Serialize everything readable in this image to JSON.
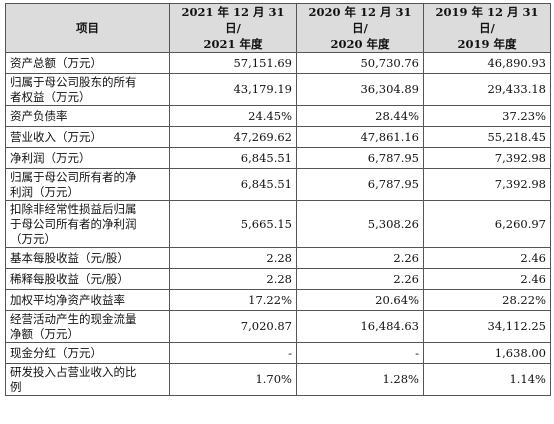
{
  "header": {
    "item": "项目",
    "col2021": [
      "2021 年 12 月 31 日/",
      "2021 年度"
    ],
    "col2020": [
      "2020 年 12 月 31 日/",
      "2020 年度"
    ],
    "col2019": [
      "2019 年 12 月 31 日/",
      "2019 年度"
    ]
  },
  "rows": [
    {
      "label": [
        "资产总额（万元）"
      ],
      "v2021": "57,151.69",
      "v2020": "50,730.76",
      "v2019": "46,890.93"
    },
    {
      "label": [
        "归属于母公司股东的所有",
        "者权益（万元）"
      ],
      "v2021": "43,179.19",
      "v2020": "36,304.89",
      "v2019": "29,433.18"
    },
    {
      "label": [
        "资产负债率"
      ],
      "v2021": "24.45%",
      "v2020": "28.44%",
      "v2019": "37.23%"
    },
    {
      "label": [
        "营业收入（万元）"
      ],
      "v2021": "47,269.62",
      "v2020": "47,861.16",
      "v2019": "55,218.45"
    },
    {
      "label": [
        "净利润（万元）"
      ],
      "v2021": "6,845.51",
      "v2020": "6,787.95",
      "v2019": "7,392.98"
    },
    {
      "label": [
        "归属于母公司所有者的净",
        "利润（万元）"
      ],
      "v2021": "6,845.51",
      "v2020": "6,787.95",
      "v2019": "7,392.98"
    },
    {
      "label": [
        "扣除非经常性损益后归属",
        "于母公司所有者的净利润",
        "（万元）"
      ],
      "v2021": "5,665.15",
      "v2020": "5,308.26",
      "v2019": "6,260.97"
    },
    {
      "label": [
        "基本每股收益（元/股）"
      ],
      "v2021": "2.28",
      "v2020": "2.26",
      "v2019": "2.46"
    },
    {
      "label": [
        "稀释每股收益（元/股）"
      ],
      "v2021": "2.28",
      "v2020": "2.26",
      "v2019": "2.46"
    },
    {
      "label": [
        "加权平均净资产收益率"
      ],
      "v2021": "17.22%",
      "v2020": "20.64%",
      "v2019": "28.22%"
    },
    {
      "label": [
        "经营活动产生的现金流量",
        "净额（万元）"
      ],
      "v2021": "7,020.87",
      "v2020": "16,484.63",
      "v2019": "34,112.25"
    },
    {
      "label": [
        "现金分红（万元）"
      ],
      "v2021": "-",
      "v2020": "-",
      "v2019": "1,638.00"
    },
    {
      "label": [
        "研发投入占营业收入的比",
        "例"
      ],
      "v2021": "1.70%",
      "v2020": "1.28%",
      "v2019": "1.14%"
    }
  ]
}
